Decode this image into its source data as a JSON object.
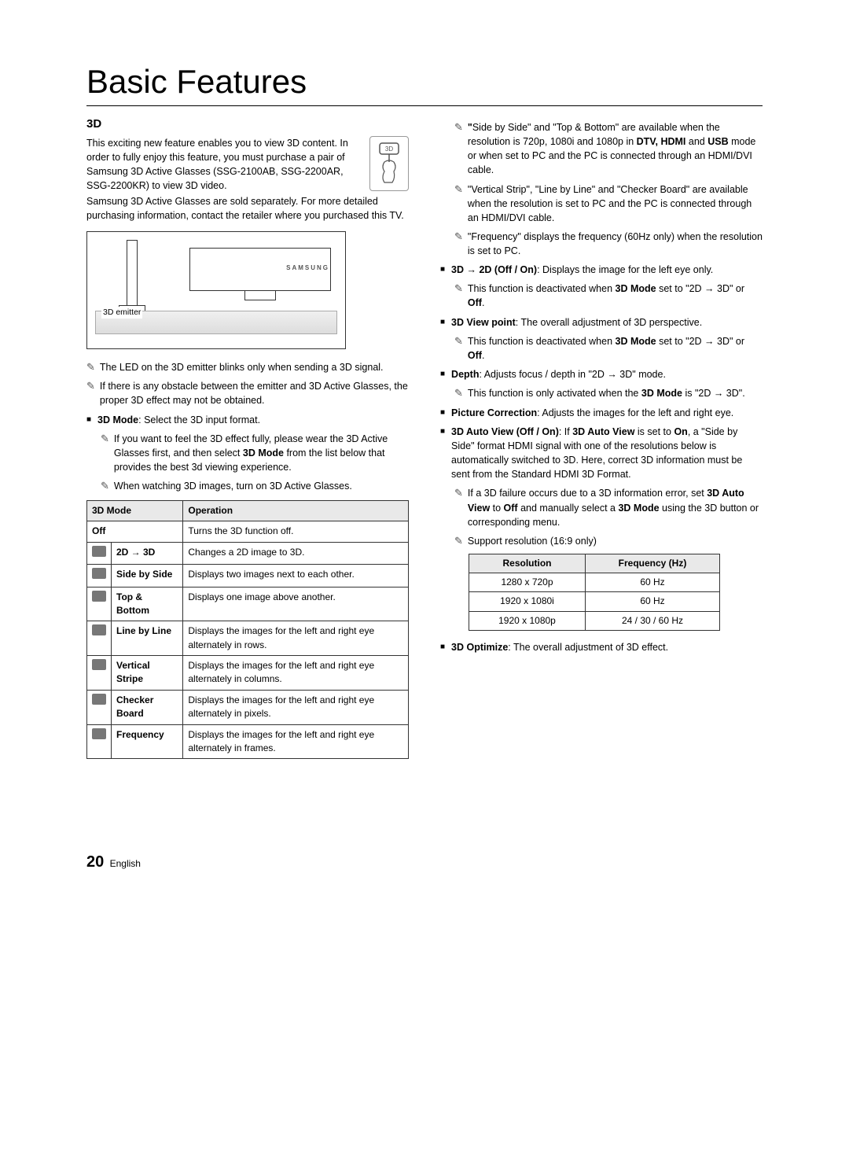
{
  "title": "Basic Features",
  "section_heading": "3D",
  "intro_para": "This exciting new feature enables you to view 3D content. In order to fully enjoy this feature, you must purchase a pair of Samsung 3D Active Glasses (SSG-2100AB, SSG-2200AR, SSG-2200KR) to view 3D video.",
  "intro_para2": "Samsung 3D Active Glasses are sold separately. For more detailed purchasing information, contact the retailer where you purchased this TV.",
  "diagram_label": "3D emitter",
  "diagram_logo": "SAMSUNG",
  "left_notes": [
    "The LED on the 3D emitter blinks only when sending a 3D signal.",
    "If there is any obstacle between the emitter and 3D Active Glasses, the proper 3D effect may not be obtained."
  ],
  "mode_bullet_label": "3D Mode",
  "mode_bullet_text": ": Select the 3D input format.",
  "mode_sub_notes": [
    "If you want to feel the 3D effect fully, please wear the 3D Active Glasses first, and then select 3D Mode from the list below that provides the best 3d viewing experience.",
    "When watching 3D images, turn on 3D Active Glasses."
  ],
  "modes_table": {
    "headers": [
      "3D Mode",
      "Operation"
    ],
    "rows": [
      {
        "icon": false,
        "mode": "Off",
        "op": "Turns the 3D function off."
      },
      {
        "icon": true,
        "mode": "2D → 3D",
        "op": "Changes a 2D image to 3D."
      },
      {
        "icon": true,
        "mode": "Side by Side",
        "op": "Displays two images next to each other."
      },
      {
        "icon": true,
        "mode": "Top & Bottom",
        "op": "Displays one image above another."
      },
      {
        "icon": true,
        "mode": "Line by Line",
        "op": "Displays the images for the left and right eye alternately in rows."
      },
      {
        "icon": true,
        "mode": "Vertical Stripe",
        "op": "Displays the images for the left and right eye alternately in columns."
      },
      {
        "icon": true,
        "mode": "Checker Board",
        "op": "Displays the images for the left and right eye alternately in pixels."
      },
      {
        "icon": true,
        "mode": "Frequency",
        "op": "Displays the images for the left and right eye alternately in frames."
      }
    ]
  },
  "right_top_notes": [
    "\"Side by Side\" and \"Top & Bottom\" are available when the resolution is 720p, 1080i and 1080p in DTV, HDMI and USB mode or when set to PC and the PC is connected through an HDMI/DVI cable.",
    "\"Vertical Strip\", \"Line by Line\" and \"Checker Board\" are available when the resolution is set to PC and the PC is connected through an HDMI/DVI cable.",
    "\"Frequency\" displays the frequency (60Hz only) when the resolution is set to PC."
  ],
  "right_bullets": {
    "b1_label": "3D → 2D (Off / On)",
    "b1_text": ": Displays the image for the left eye only.",
    "b1_note_pre": "This function is deactivated when ",
    "b1_note_bold": "3D Mode",
    "b1_note_post": " set to \"2D → 3D\" or Off.",
    "b2_label": "3D View point",
    "b2_text": ": The overall adjustment of 3D perspective.",
    "b2_note_pre": "This function is deactivated when ",
    "b2_note_bold": "3D Mode",
    "b2_note_post": " set to \"2D → 3D\" or Off.",
    "b3_label": "Depth",
    "b3_text": ": Adjusts focus / depth in \"2D → 3D\" mode.",
    "b3_note_pre": "This function is only activated when the ",
    "b3_note_bold": "3D Mode",
    "b3_note_post": " is \"2D → 3D\".",
    "b4_label": "Picture Correction",
    "b4_text": ": Adjusts the images for the left and right eye.",
    "b5_label": "3D Auto View (Off / On)",
    "b5_text": ": If 3D Auto View is set to On, a \"Side by Side\" format HDMI signal with one of the resolutions below is automatically switched to 3D. Here, correct 3D information must be sent from the Standard HDMI 3D Format.",
    "b5_note1": "If a 3D failure occurs due to a 3D information error, set 3D Auto View to Off and manually select a 3D Mode using the 3D button or corresponding menu.",
    "b5_note2": "Support resolution (16:9 only)",
    "b6_label": "3D Optimize",
    "b6_text": ": The overall adjustment of 3D effect."
  },
  "res_table": {
    "headers": [
      "Resolution",
      "Frequency (Hz)"
    ],
    "rows": [
      [
        "1280 x 720p",
        "60 Hz"
      ],
      [
        "1920 x 1080i",
        "60 Hz"
      ],
      [
        "1920 x 1080p",
        "24 / 30 / 60 Hz"
      ]
    ]
  },
  "footer": {
    "page_num": "20",
    "lang": "English"
  }
}
